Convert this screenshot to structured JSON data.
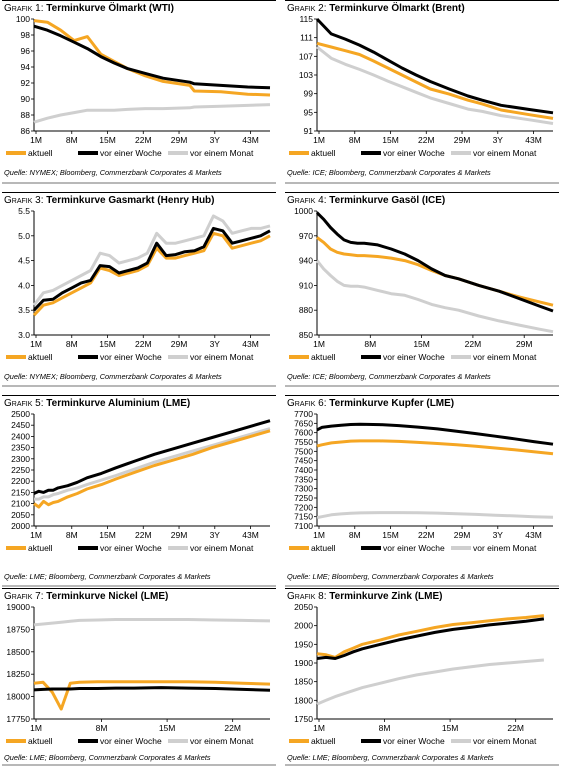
{
  "legend_labels": [
    "aktuell",
    "vor einer Woche",
    "vor einem Monat"
  ],
  "colors": {
    "aktuell": "#f5a623",
    "vor einer Woche": "#000000",
    "vor einem Monat": "#cfcfcf"
  },
  "charts": [
    {
      "label": "Grafik 1:",
      "title": "Terminkurve Ölmarkt (WTI)",
      "source": "Quelle: NYMEX; Bloomberg, Commerzbank Corporates & Markets",
      "chart_data": {
        "type": "line",
        "x_ticks": [
          "1M",
          "8M",
          "15M",
          "22M",
          "29M",
          "3Y",
          "43M"
        ],
        "y_ticks": [
          "100",
          "98",
          "96",
          "94",
          "92",
          "90",
          "88",
          "86"
        ],
        "ylim": [
          86,
          100
        ],
        "x_months": [
          1,
          4,
          7,
          10,
          13,
          16,
          19,
          22,
          26,
          30,
          36,
          37,
          43,
          49,
          54
        ],
        "series": [
          {
            "name": "aktuell",
            "values": [
              99.8,
              99.6,
              98.6,
              97.3,
              97.8,
              95.6,
              94.7,
              93.8,
              92.9,
              92.2,
              91.7,
              91.0,
              90.9,
              90.6,
              90.5
            ]
          },
          {
            "name": "vor einer Woche",
            "values": [
              99.1,
              98.6,
              97.9,
              97.1,
              96.3,
              95.3,
              94.5,
              93.8,
              93.2,
              92.6,
              92.1,
              91.9,
              91.7,
              91.5,
              91.4
            ]
          },
          {
            "name": "vor einem Monat",
            "values": [
              87.1,
              87.6,
              88.0,
              88.3,
              88.6,
              88.6,
              88.6,
              88.7,
              88.8,
              88.8,
              88.9,
              89.0,
              89.1,
              89.2,
              89.3
            ]
          }
        ]
      }
    },
    {
      "label": "Grafik 2:",
      "title": "Terminkurve Ölmarkt (Brent)",
      "source": "Quelle: ICE; Bloomberg, Commerzbank Corporates & Markets",
      "chart_data": {
        "type": "line",
        "x_ticks": [
          "1M",
          "8M",
          "15M",
          "22M",
          "29M",
          "3Y",
          "43M"
        ],
        "y_ticks": [
          "115",
          "111",
          "107",
          "103",
          "99",
          "95",
          "91"
        ],
        "ylim": [
          91,
          115
        ],
        "x_months": [
          1,
          4,
          7,
          10,
          13,
          16,
          19,
          22,
          25,
          29,
          33,
          36,
          40,
          46,
          51
        ],
        "series": [
          {
            "name": "aktuell",
            "values": [
              109.8,
              109.0,
              108.2,
              107.4,
              106.0,
              104.5,
              103.0,
              101.5,
              100.0,
              98.9,
              97.6,
              96.8,
              95.5,
              94.5,
              93.7
            ]
          },
          {
            "name": "vor einer Woche",
            "values": [
              115.0,
              111.8,
              110.7,
              109.4,
              107.9,
              106.2,
              104.5,
              103.0,
              101.6,
              100.0,
              98.5,
              97.6,
              96.5,
              95.6,
              94.9
            ]
          },
          {
            "name": "vor einem Monat",
            "values": [
              109.0,
              106.6,
              105.3,
              104.2,
              103.0,
              101.7,
              100.5,
              99.3,
              98.1,
              96.9,
              95.7,
              95.2,
              94.3,
              93.4,
              92.6
            ]
          }
        ]
      }
    },
    {
      "label": "Grafik 3:",
      "title": "Terminkurve Gasmarkt (Henry Hub)",
      "source": "Quelle: NYMEX; Bloomberg, Commerzbank Corporates & Markets",
      "chart_data": {
        "type": "line",
        "x_ticks": [
          "1M",
          "8M",
          "15M",
          "22M",
          "29M",
          "3Y",
          "43M"
        ],
        "y_ticks": [
          "5.5",
          "5.0",
          "4.5",
          "4.0",
          "3.5",
          "3.0"
        ],
        "ylim": [
          3.0,
          5.5
        ],
        "x_months": [
          1,
          3,
          5,
          7,
          9,
          11,
          13,
          15,
          17,
          19,
          21,
          23,
          25,
          27,
          29,
          31,
          33,
          35,
          37,
          39,
          41,
          43,
          45,
          47,
          49,
          51
        ],
        "series": [
          {
            "name": "aktuell",
            "values": [
              3.4,
              3.6,
              3.65,
              3.75,
              3.85,
              3.95,
              4.05,
              4.35,
              4.3,
              4.2,
              4.25,
              4.3,
              4.4,
              4.75,
              4.55,
              4.55,
              4.6,
              4.65,
              4.7,
              5.05,
              5.0,
              4.75,
              4.8,
              4.85,
              4.9,
              5.0
            ]
          },
          {
            "name": "vor einer Woche",
            "values": [
              3.5,
              3.7,
              3.72,
              3.85,
              3.95,
              4.05,
              4.1,
              4.4,
              4.38,
              4.25,
              4.3,
              4.35,
              4.45,
              4.85,
              4.6,
              4.62,
              4.68,
              4.7,
              4.78,
              5.15,
              5.1,
              4.85,
              4.9,
              4.95,
              5.0,
              5.1
            ]
          },
          {
            "name": "vor einem Monat",
            "values": [
              3.6,
              3.85,
              3.9,
              4.0,
              4.1,
              4.2,
              4.3,
              4.65,
              4.6,
              4.45,
              4.5,
              4.55,
              4.65,
              5.05,
              4.85,
              4.85,
              4.9,
              4.95,
              5.0,
              5.4,
              5.3,
              5.05,
              5.1,
              5.15,
              5.15,
              5.2
            ]
          }
        ]
      }
    },
    {
      "label": "Grafik 4:",
      "title": "Terminkurve Gasöl (ICE)",
      "source": "Quelle: ICE; Bloomberg, Commerzbank Corporates & Markets",
      "chart_data": {
        "type": "line",
        "x_ticks": [
          "1M",
          "8M",
          "15M",
          "22M",
          "29M"
        ],
        "y_ticks": [
          "1000",
          "970",
          "940",
          "910",
          "880",
          "850"
        ],
        "ylim": [
          850,
          1000
        ],
        "x_months": [
          1,
          2,
          3,
          4,
          5,
          6,
          7,
          8,
          10,
          12,
          14,
          16,
          18,
          20,
          22,
          25,
          28,
          31,
          34,
          36
        ],
        "series": [
          {
            "name": "aktuell",
            "values": [
              968,
              962,
              954,
              950,
              948,
              947,
              946,
              946,
              945,
              943,
              940,
              935,
              928,
              922,
              918,
              910,
              903,
              896,
              890,
              886
            ]
          },
          {
            "name": "vor einer Woche",
            "values": [
              998,
              990,
              980,
              972,
              965,
              962,
              961,
              961,
              959,
              954,
              948,
              940,
              930,
              922,
              918,
              910,
              903,
              894,
              885,
              879
            ]
          },
          {
            "name": "vor einem Monat",
            "values": [
              940,
              930,
              922,
              915,
              910,
              909,
              909,
              908,
              904,
              900,
              898,
              893,
              887,
              883,
              880,
              873,
              867,
              862,
              857,
              854
            ]
          }
        ]
      }
    },
    {
      "label": "Grafik 5:",
      "title": "Terminkurve Aluminium (LME)",
      "source": "Quelle: LME; Bloomberg, Commerzbank Corporates & Markets",
      "chart_data": {
        "type": "line",
        "x_ticks": [
          "1M",
          "8M",
          "15M",
          "22M",
          "29M",
          "3Y",
          "43M"
        ],
        "y_ticks": [
          "2500",
          "2450",
          "2400",
          "2350",
          "2300",
          "2250",
          "2200",
          "2150",
          "2100",
          "2050",
          "2000"
        ],
        "ylim": [
          2000,
          2500
        ],
        "x_months": [
          1,
          2,
          3,
          4,
          5,
          6,
          8,
          10,
          12,
          15,
          18,
          22,
          26,
          30,
          34,
          38,
          42,
          46,
          50
        ],
        "series": [
          {
            "name": "aktuell",
            "values": [
              2100,
              2085,
              2110,
              2095,
              2105,
              2110,
              2130,
              2145,
              2165,
              2185,
              2210,
              2240,
              2270,
              2295,
              2320,
              2350,
              2375,
              2400,
              2425
            ]
          },
          {
            "name": "vor einer Woche",
            "values": [
              2145,
              2155,
              2150,
              2160,
              2160,
              2170,
              2180,
              2195,
              2215,
              2235,
              2260,
              2290,
              2320,
              2345,
              2370,
              2395,
              2420,
              2445,
              2470
            ]
          },
          {
            "name": "vor einem Monat",
            "values": [
              2120,
              2120,
              2130,
              2130,
              2140,
              2145,
              2160,
              2170,
              2185,
              2205,
              2225,
              2255,
              2285,
              2310,
              2335,
              2360,
              2385,
              2410,
              2435
            ]
          }
        ]
      }
    },
    {
      "label": "Grafik 6:",
      "title": "Terminkurve Kupfer (LME)",
      "source": "Quelle: LME; Bloomberg, Commerzbank Corporates & Markets",
      "chart_data": {
        "type": "line",
        "x_ticks": [
          "1M",
          "8M",
          "15M",
          "22M",
          "29M",
          "3Y",
          "43M"
        ],
        "y_ticks": [
          "7700",
          "7650",
          "7600",
          "7550",
          "7500",
          "7450",
          "7400",
          "7350",
          "7300",
          "7250",
          "7200",
          "7150",
          "7100"
        ],
        "ylim": [
          7100,
          7700
        ],
        "x_months": [
          1,
          2,
          4,
          6,
          8,
          10,
          14,
          18,
          22,
          26,
          30,
          34,
          38,
          42,
          46,
          50
        ],
        "series": [
          {
            "name": "aktuell",
            "values": [
              7528,
              7535,
              7545,
              7550,
              7555,
              7556,
              7556,
              7553,
              7548,
              7542,
              7535,
              7527,
              7518,
              7508,
              7498,
              7487
            ]
          },
          {
            "name": "vor einer Woche",
            "values": [
              7615,
              7628,
              7635,
              7640,
              7644,
              7645,
              7643,
              7638,
              7630,
              7620,
              7608,
              7595,
              7581,
              7567,
              7552,
              7538
            ]
          },
          {
            "name": "vor einem Monat",
            "values": [
              7145,
              7150,
              7160,
              7165,
              7168,
              7170,
              7172,
              7172,
              7171,
              7169,
              7166,
              7162,
              7158,
              7154,
              7150,
              7147
            ]
          }
        ]
      }
    },
    {
      "label": "Grafik 7:",
      "title": "Terminkurve Nickel (LME)",
      "source": "Quelle: LME; Bloomberg, Commerzbank Corporates & Markets",
      "chart_data": {
        "type": "line",
        "x_ticks": [
          "1M",
          "8M",
          "15M",
          "22M"
        ],
        "y_ticks": [
          "19000",
          "18750",
          "18500",
          "18250",
          "18000",
          "17750"
        ],
        "ylim": [
          17750,
          19000
        ],
        "x_months": [
          1,
          2,
          3,
          4,
          5,
          6,
          8,
          10,
          12,
          15,
          18,
          21,
          24,
          27
        ],
        "series": [
          {
            "name": "aktuell",
            "values": [
              18150,
              18160,
              18050,
              17860,
              18150,
              18160,
              18165,
              18165,
              18165,
              18165,
              18165,
              18160,
              18150,
              18140
            ]
          },
          {
            "name": "vor einer Woche",
            "values": [
              18075,
              18080,
              18085,
              18085,
              18085,
              18090,
              18090,
              18095,
              18095,
              18100,
              18095,
              18090,
              18080,
              18070
            ]
          },
          {
            "name": "vor einem Monat",
            "values": [
              18800,
              18810,
              18820,
              18830,
              18840,
              18850,
              18855,
              18860,
              18860,
              18860,
              18860,
              18855,
              18850,
              18845
            ]
          }
        ]
      }
    },
    {
      "label": "Grafik 8:",
      "title": "Terminkurve Zink (LME)",
      "source": "Quelle: LME; Bloomberg, Commerzbank Corporates & Markets",
      "chart_data": {
        "type": "line",
        "x_ticks": [
          "1M",
          "8M",
          "15M",
          "22M"
        ],
        "y_ticks": [
          "2050",
          "2000",
          "1950",
          "1900",
          "1850",
          "1800",
          "1750"
        ],
        "ylim": [
          1750,
          2050
        ],
        "x_months": [
          1,
          2,
          3,
          4,
          5,
          6,
          8,
          10,
          12,
          14,
          16,
          18,
          20,
          22,
          24,
          26
        ],
        "series": [
          {
            "name": "aktuell",
            "values": [
              1925,
              1922,
              1915,
              1930,
              1940,
              1950,
              1962,
              1975,
              1985,
              1995,
              2003,
              2008,
              2013,
              2018,
              2022,
              2027
            ]
          },
          {
            "name": "vor einer Woche",
            "values": [
              1912,
              1915,
              1912,
              1920,
              1930,
              1938,
              1950,
              1962,
              1972,
              1982,
              1990,
              1996,
              2002,
              2007,
              2012,
              2018
            ]
          },
          {
            "name": "vor einem Monat",
            "values": [
              1790,
              1800,
              1810,
              1818,
              1826,
              1834,
              1846,
              1858,
              1868,
              1876,
              1884,
              1890,
              1896,
              1900,
              1904,
              1908
            ]
          }
        ]
      }
    }
  ]
}
